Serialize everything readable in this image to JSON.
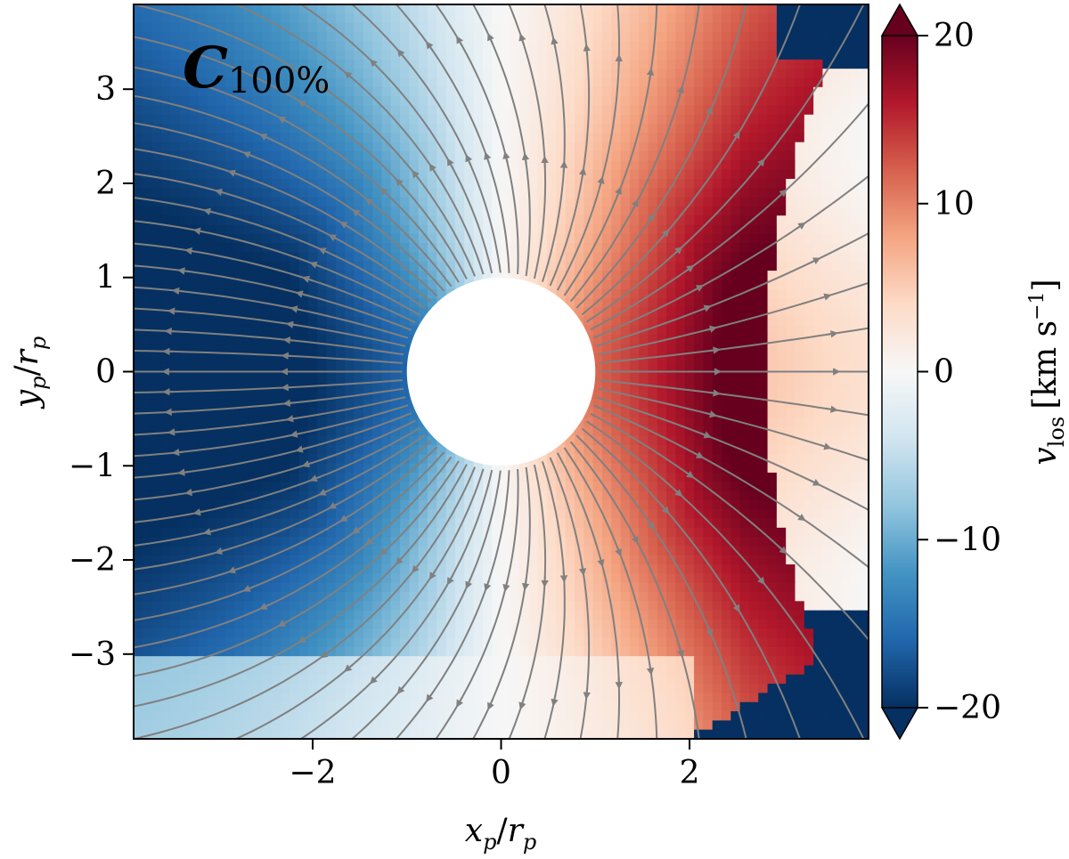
{
  "chart_data": {
    "type": "heatmap",
    "title": "",
    "panel_label": {
      "main": "C",
      "sub": "100%"
    },
    "xlabel": {
      "var": "x",
      "sub": "p",
      "slash": "/",
      "var2": "r",
      "sub2": "p"
    },
    "ylabel": {
      "var": "y",
      "sub": "p",
      "slash": "/",
      "var2": "r",
      "sub2": "p"
    },
    "xlim": [
      -3.9,
      3.9
    ],
    "ylim": [
      -3.9,
      3.9
    ],
    "x_ticks": [
      -2,
      0,
      2
    ],
    "x_tick_labels": [
      "−2",
      "0",
      "2"
    ],
    "y_ticks": [
      3,
      2,
      1,
      0,
      -1,
      -2,
      -3
    ],
    "y_tick_labels": [
      "3",
      "2",
      "1",
      "0",
      "−1",
      "−2",
      "−3"
    ],
    "mask_radius": 1.0,
    "colorbar": {
      "label_var": "v",
      "label_sub": "los",
      "label_units": "[km s",
      "label_exp": "−1",
      "label_close": "]",
      "range": [
        -20,
        20
      ],
      "ticks": [
        20,
        10,
        0,
        -10,
        -20
      ],
      "tick_labels": [
        "20",
        "10",
        "0",
        "−10",
        "−20"
      ],
      "extend": "both",
      "colormap": "RdBu_r",
      "colormap_stops": [
        "#053061",
        "#2166ac",
        "#4393c3",
        "#92c5de",
        "#d1e5f0",
        "#f7f7f7",
        "#fddbc7",
        "#f4a582",
        "#d6604d",
        "#b2182b",
        "#67001f"
      ]
    },
    "streamline_color": "#808080",
    "grid": false
  }
}
